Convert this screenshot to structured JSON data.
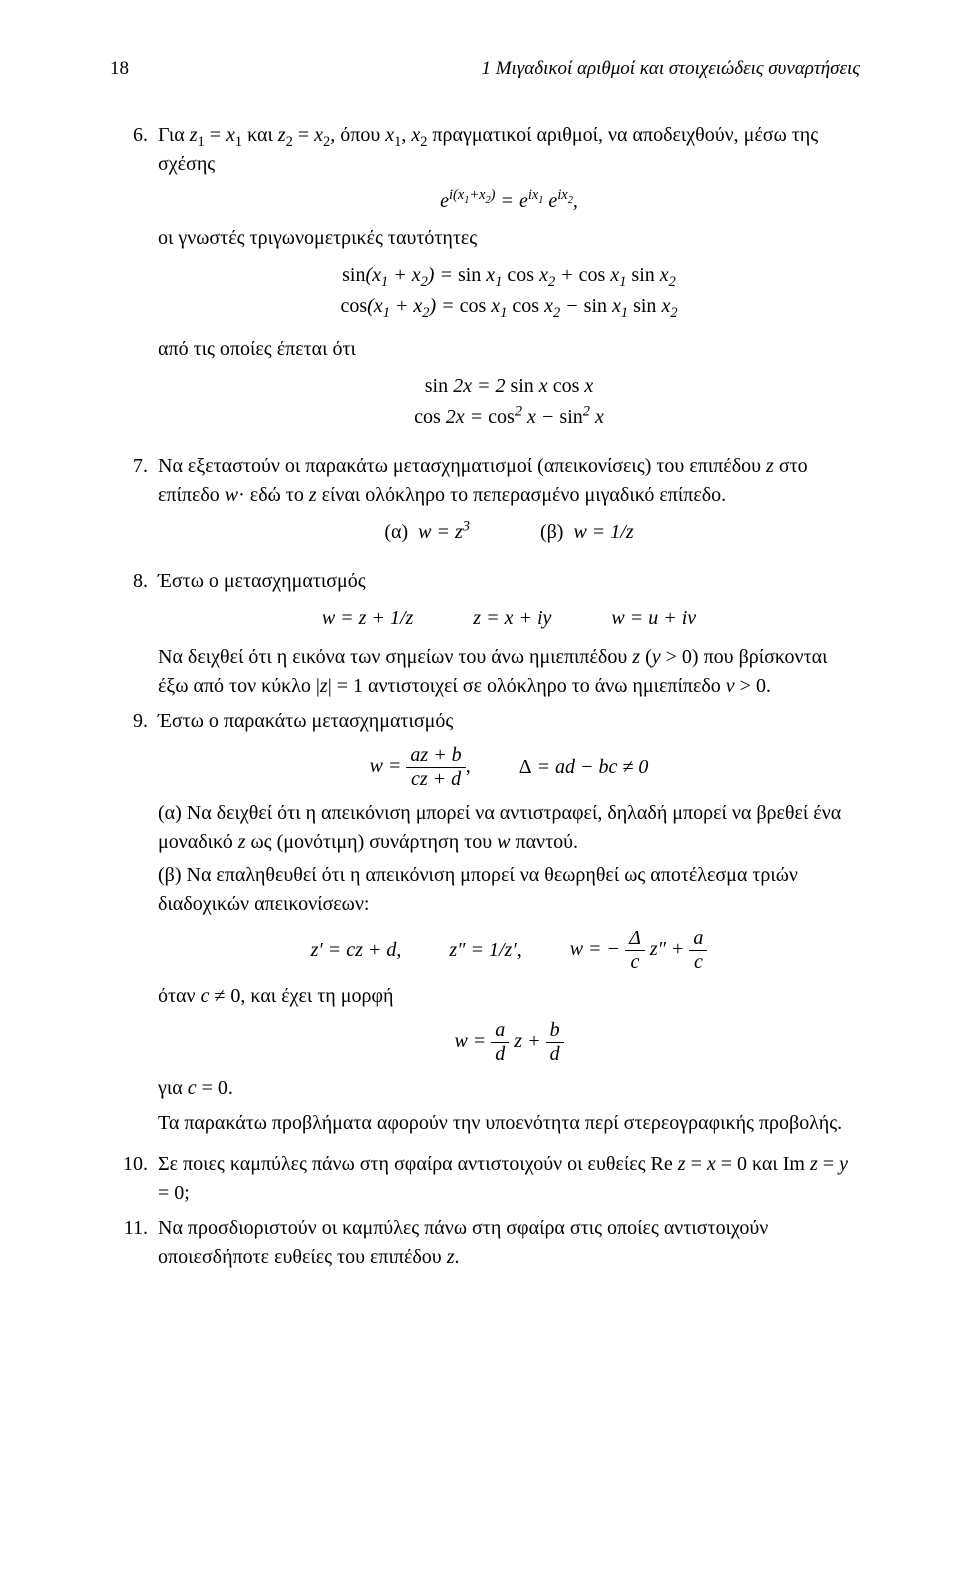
{
  "page_number": "18",
  "running_title": "1 Μιγαδικοί αριθμοί και στοιχειώδεις συναρτήσεις",
  "p6": {
    "num": "6.",
    "text1": "Για z₁ = x₁ και z₂ = x₂, όπου x₁, x₂ πραγματικοί αριθμοί, να αποδειχθούν, μέσω της σχέσης",
    "eq_exp": "e^{i(x₁+x₂)} = e^{ix₁} e^{ix₂},",
    "text2": "οι γνωστές τριγωνομετρικές ταυτότητες",
    "eq_sin": "sin(x₁ + x₂) = sin x₁ cos x₂ + cos x₁ sin x₂",
    "eq_cos": "cos(x₁ + x₂) = cos x₁ cos x₂ − sin x₁ sin x₂",
    "text3": "από τις οποίες έπεται ότι",
    "eq_sin2x": "sin 2x = 2 sin x cos x",
    "eq_cos2x": "cos 2x = cos² x − sin² x"
  },
  "p7": {
    "num": "7.",
    "text": "Να εξεταστούν οι παρακάτω μετασχηματισμοί (απεικονίσεις) του επιπέδου z στο επίπεδο w· εδώ το z είναι ολόκληρο το πεπερασμένο μιγαδικό επίπεδο.",
    "a_label": "(α)",
    "a_eq": "w = z³",
    "b_label": "(β)",
    "b_eq": "w = 1/z"
  },
  "p8": {
    "num": "8.",
    "text1": "Έστω ο μετασχηματισμός",
    "eq1": "w = z + 1/z",
    "eq2": "z = x + iy",
    "eq3": "w = u + iv",
    "text2": "Να δειχθεί ότι η εικόνα των σημείων του άνω ημιεπιπέδου z (y > 0) που βρίσκονται έξω από τον κύκλο |z| = 1 αντιστοιχεί σε ολόκληρο το άνω ημιεπίπεδο v > 0."
  },
  "p9": {
    "num": "9.",
    "text1": "Έστω ο παρακάτω μετασχηματισμός",
    "frac_num": "az + b",
    "frac_den": "cz + d",
    "delta": "Δ = ad − bc ≠ 0",
    "a_text": "(α) Να δειχθεί ότι η απεικόνιση μπορεί να αντιστραφεί, δηλαδή μπορεί να βρεθεί ένα μοναδικό z ως (μονότιμη) συνάρτηση του w παντού.",
    "b_text": "(β) Να επαληθευθεί ότι η απεικόνιση μπορεί να θεωρηθεί ως αποτέλεσμα τριών διαδοχικών απεικονίσεων:",
    "row_zp": "z′ = cz + d,",
    "row_zpp": "z″ = 1/z′,",
    "row_w_lhs": "w = −",
    "row_w_f1n": "Δ",
    "row_w_f1d": "c",
    "row_w_mid": " z″ + ",
    "row_w_f2n": "a",
    "row_w_f2d": "c",
    "text_when": "όταν c ≠ 0, και έχει τη μορφή",
    "w2_lhs": "w = ",
    "w2_f1n": "a",
    "w2_f1d": "d",
    "w2_mid": " z + ",
    "w2_f2n": "b",
    "w2_f2d": "d",
    "text_for": "για c = 0.",
    "tail": "Τα παρακάτω προβλήματα αφορούν την υποενότητα περί στερεογραφικής προβολής."
  },
  "p10": {
    "num": "10.",
    "text": "Σε ποιες καμπύλες πάνω στη σφαίρα αντιστοιχούν οι ευθείες Re z = x = 0 και Im z = y = 0;"
  },
  "p11": {
    "num": "11.",
    "text": "Να προσδιοριστούν οι καμπύλες πάνω στη σφαίρα στις οποίες αντιστοιχούν οποιεσδήποτε ευθείες του επιπέδου z."
  }
}
